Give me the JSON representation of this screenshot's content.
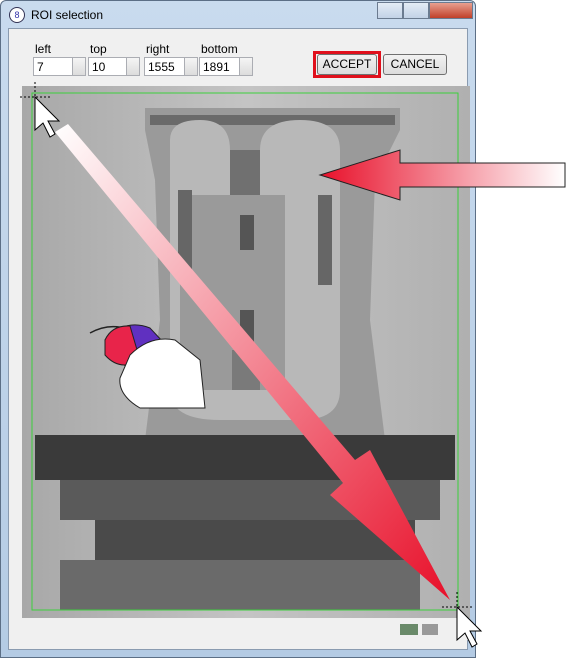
{
  "window": {
    "title": "ROI selection"
  },
  "fields": [
    {
      "label": "left",
      "value": 7
    },
    {
      "label": "top",
      "value": 10
    },
    {
      "label": "right",
      "value": 1555
    },
    {
      "label": "bottom",
      "value": 1891
    }
  ],
  "buttons": [
    "ACCEPT",
    "CANCEL"
  ]
}
